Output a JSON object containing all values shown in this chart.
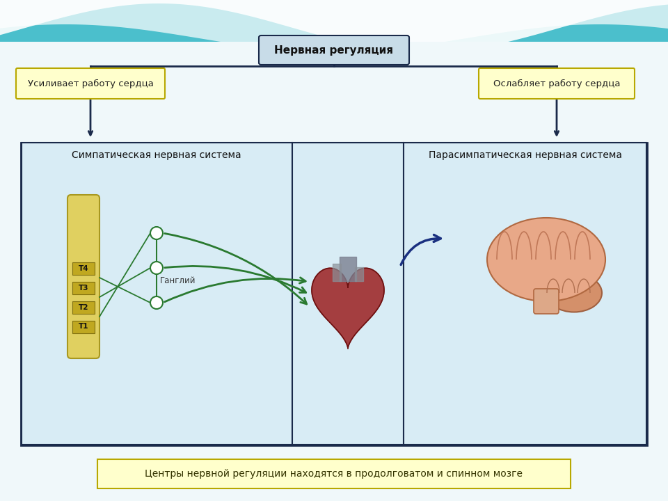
{
  "bg_color": "#f0f8fa",
  "wave_teal": "#4bbfcc",
  "title_box_text": "Нервная регуляция",
  "title_box_bg": "#c8dce8",
  "title_box_border": "#1a2a4a",
  "left_label": "Усиливает работу сердца",
  "right_label": "Ослабляет работу сердца",
  "label_bg": "#ffffcc",
  "label_border": "#b8a800",
  "main_panel_bg": "#cfe4ef",
  "main_panel_border": "#1a2a4a",
  "left_panel_title": "Симпатическая нервная система",
  "right_panel_title": "Парасимпатическая нервная система",
  "ganglia_label": "Ганглий",
  "spinal_labels": [
    "T1",
    "T2",
    "T3",
    "T4"
  ],
  "arrow_color_green": "#2a7a30",
  "arrow_color_blue": "#1a3080",
  "bottom_text": "Центры нервной регуляции находятся в продолговатом и спинном мозге",
  "bottom_box_bg": "#ffffcc",
  "bottom_box_border": "#b8a800",
  "line_color": "#1a2a4a"
}
